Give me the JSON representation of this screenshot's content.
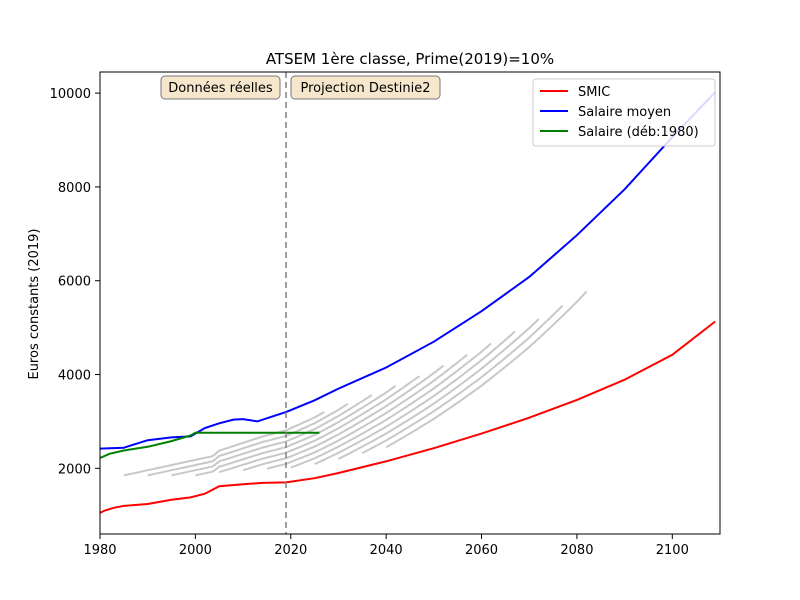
{
  "chart_data": {
    "type": "line",
    "title": "ATSEM 1ère classe, Prime(2019)=10%",
    "xlabel": "",
    "ylabel": "Euros constants (2019)",
    "xlim": [
      1980,
      2110
    ],
    "ylim": [
      600,
      10450
    ],
    "xticks": [
      1980,
      2000,
      2020,
      2040,
      2060,
      2080,
      2100
    ],
    "yticks": [
      2000,
      4000,
      6000,
      8000,
      10000
    ],
    "legend_position": "top-right",
    "grid": false,
    "annotations": {
      "vline_x": 2019,
      "left_box": "Données réelles",
      "right_box": "Projection Destinie2"
    },
    "series": [
      {
        "name": "SMIC",
        "color": "#ff0000",
        "x": [
          1980,
          1981,
          1983,
          1985,
          1990,
          1995,
          1999,
          2002,
          2005,
          2010,
          2014,
          2019,
          2025,
          2030,
          2040,
          2050,
          2060,
          2070,
          2080,
          2090,
          2100,
          2109
        ],
        "values": [
          1050,
          1100,
          1160,
          1200,
          1240,
          1330,
          1380,
          1460,
          1620,
          1660,
          1690,
          1700,
          1790,
          1900,
          2150,
          2430,
          2740,
          3080,
          3460,
          3890,
          4420,
          5130
        ]
      },
      {
        "name": "Salaire moyen",
        "color": "#0000ff",
        "x": [
          1980,
          1985,
          1990,
          1995,
          1999,
          2002,
          2005,
          2008,
          2010,
          2013,
          2016,
          2019,
          2025,
          2030,
          2040,
          2050,
          2060,
          2070,
          2080,
          2090,
          2100,
          2109
        ],
        "values": [
          2420,
          2440,
          2600,
          2660,
          2680,
          2860,
          2960,
          3040,
          3050,
          3000,
          3100,
          3200,
          3450,
          3700,
          4150,
          4700,
          5350,
          6080,
          6970,
          7950,
          9060,
          10020
        ]
      },
      {
        "name": "Salaire (déb:1980)",
        "color": "#008000",
        "x": [
          1980,
          1982,
          1985,
          1990,
          1995,
          1999,
          2000,
          2005,
          2010,
          2015,
          2020,
          2026
        ],
        "values": [
          2220,
          2310,
          2380,
          2460,
          2580,
          2700,
          2760,
          2760,
          2760,
          2760,
          2760,
          2760
        ]
      }
    ],
    "cohort_series_start_years": [
      1985,
      1990,
      1995,
      2000,
      2005,
      2010,
      2015,
      2020,
      2025,
      2030,
      2035,
      2040
    ],
    "cohort_series_color": "#c8c8c8"
  }
}
